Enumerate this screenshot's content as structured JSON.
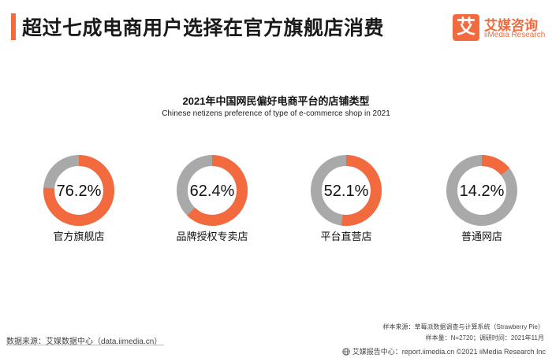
{
  "header": {
    "title": "超过七成电商用户选择在官方旗舰店消费",
    "logo_glyph": "艾",
    "logo_cn": "艾媒咨询",
    "logo_en": "iiMedia Research"
  },
  "colors": {
    "accent": "#f26a3d",
    "remainder": "#a9a9a9"
  },
  "chart_data": {
    "type": "pie",
    "title": "2021年中国网民偏好电商平台的店铺类型",
    "subtitle": "Chinese netizens preference of type of e-commerce shop in 2021",
    "items": [
      {
        "label": "官方旗舰店",
        "value": 76.2,
        "display": "76.2%"
      },
      {
        "label": "品牌授权专卖店",
        "value": 62.4,
        "display": "62.4%"
      },
      {
        "label": "平台直营店",
        "value": 52.1,
        "display": "52.1%"
      },
      {
        "label": "普通网店",
        "value": 14.2,
        "display": "14.2%"
      }
    ],
    "unit": "%"
  },
  "footer": {
    "source": "数据来源：艾媒数据中心（data.iimedia.cn）",
    "sample_source": "样本来源：草莓派数据调查与计算系统（Strawberry Pie）",
    "sample_size": "样本量：N=2720；调研时间：2021年11月",
    "report": "艾媒报告中心：report.iimedia.cn  ©2021  iiMedia Research Inc"
  }
}
